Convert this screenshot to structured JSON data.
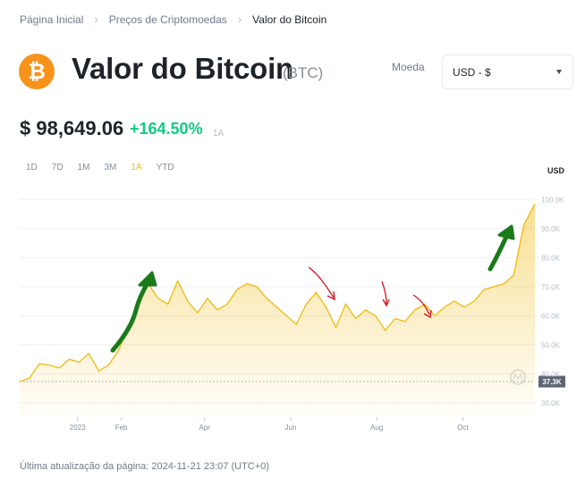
{
  "breadcrumb": {
    "items": [
      "Página Inicial",
      "Preços de Criptomoedas",
      "Valor do Bitcoin"
    ]
  },
  "header": {
    "logo_icon": "bitcoin-logo-icon",
    "title": "Valor do Bitcoin",
    "ticker": "(BTC)",
    "currency_label": "Moeda",
    "currency_value": "USD - $"
  },
  "price": {
    "value": "$ 98,649.06",
    "change": "+164.50%",
    "period": "1A"
  },
  "ranges": [
    "1D",
    "7D",
    "1M",
    "3M",
    "1A",
    "YTD"
  ],
  "active_range": "1A",
  "colors": {
    "accent": "#f0b90b",
    "positive": "#0ecb81",
    "annotation_green": "#1a7a1a",
    "annotation_red": "#d0101a"
  },
  "chart_data": {
    "type": "area",
    "unit_label": "USD",
    "ylim": [
      25000,
      105000
    ],
    "y_ticks": [
      30000,
      40000,
      50000,
      60000,
      70000,
      80000,
      90000,
      100000
    ],
    "y_tick_labels": [
      "30.0K",
      "40.0K",
      "50.0K",
      "60.0K",
      "70.0K",
      "80.0K",
      "90.0K",
      "100.0K"
    ],
    "x_range": [
      "2022-11-21",
      "2023-11-21"
    ],
    "x_ticks": [
      "2023-01-01",
      "2023-02-01",
      "2023-04-01",
      "2023-06-01",
      "2023-08-01",
      "2023-10-01"
    ],
    "x_tick_labels": [
      "2023",
      "Feb",
      "Apr",
      "Jun",
      "Aug",
      "Oct"
    ],
    "baseline_value": 37300,
    "baseline_label": "37.3K",
    "grid": true,
    "series": [
      {
        "x": [
          "2022-11-21",
          "2022-11-28",
          "2022-12-05",
          "2022-12-12",
          "2022-12-19",
          "2022-12-26",
          "2023-01-02",
          "2023-01-09",
          "2023-01-16",
          "2023-01-23",
          "2023-01-30",
          "2023-02-06",
          "2023-02-13",
          "2023-02-20",
          "2023-02-27",
          "2023-03-06",
          "2023-03-13",
          "2023-03-20",
          "2023-03-27",
          "2023-04-03",
          "2023-04-10",
          "2023-04-17",
          "2023-04-24",
          "2023-05-01",
          "2023-05-08",
          "2023-05-15",
          "2023-05-22",
          "2023-05-29",
          "2023-06-05",
          "2023-06-12",
          "2023-06-19",
          "2023-06-26",
          "2023-07-03",
          "2023-07-10",
          "2023-07-17",
          "2023-07-24",
          "2023-07-31",
          "2023-08-07",
          "2023-08-14",
          "2023-08-21",
          "2023-08-28",
          "2023-09-04",
          "2023-09-11",
          "2023-09-18",
          "2023-09-25",
          "2023-10-02",
          "2023-10-09",
          "2023-10-16",
          "2023-10-23",
          "2023-10-30",
          "2023-11-06",
          "2023-11-13",
          "2023-11-21"
        ],
        "values": [
          37300,
          38500,
          43500,
          43000,
          42000,
          45000,
          44000,
          47000,
          41000,
          43000,
          48000,
          56000,
          65000,
          71000,
          66000,
          64000,
          72000,
          65000,
          61000,
          66000,
          62000,
          64000,
          69000,
          71000,
          70000,
          66000,
          63000,
          60000,
          57000,
          64000,
          68000,
          63000,
          56000,
          64000,
          59000,
          62000,
          60000,
          55000,
          59000,
          58000,
          62000,
          64000,
          60000,
          63000,
          65000,
          63000,
          65000,
          69000,
          70000,
          71000,
          74000,
          91000,
          98600
        ]
      }
    ]
  },
  "footer": {
    "updated": "Última atualização da página: 2024-11-21 23:07 (UTC+0)"
  }
}
